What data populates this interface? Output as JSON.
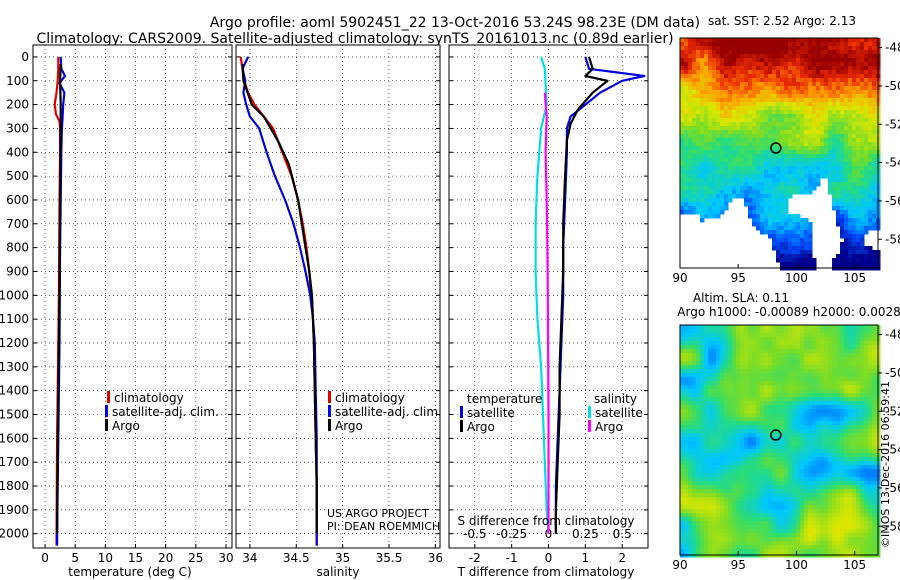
{
  "header": {
    "title_line1": "Argo profile: aoml 5902451_22 13-Oct-2016 53.24S 98.23E (DM data)",
    "title_line2": "Climatology: CARS2009. Satellite-adjusted climatology: synTS_20161013.nc (0.89d earlier)"
  },
  "colors": {
    "climatology": "#e00000",
    "satellite_adj": "#0000e0",
    "argo": "#000000",
    "s_satellite": "#00e0e0",
    "s_argo": "#ff00ff",
    "grid": "#000000"
  },
  "pressure_ticks": [
    "0",
    "100",
    "200",
    "300",
    "400",
    "500",
    "600",
    "700",
    "800",
    "900",
    "1000",
    "1100",
    "1200",
    "1300",
    "1400",
    "1500",
    "1600",
    "1700",
    "1800",
    "1900",
    "2000"
  ],
  "chart_data": [
    {
      "type": "line",
      "id": "temperature",
      "xlabel": "temperature (deg C)",
      "ylabel": "pressure (dbar)",
      "xlim": [
        -2,
        31
      ],
      "ylim": [
        2060,
        -50
      ],
      "xticks": [
        "0",
        "5",
        "10",
        "15",
        "20",
        "25",
        "30"
      ],
      "legend": [
        "climatology",
        "satellite-adj. clim.",
        "Argo"
      ],
      "series": [
        {
          "name": "climatology",
          "color": "#e00000",
          "points": [
            [
              2.2,
              0
            ],
            [
              2.2,
              50
            ],
            [
              2.1,
              100
            ],
            [
              1.9,
              150
            ],
            [
              1.6,
              200
            ],
            [
              1.8,
              240
            ],
            [
              2.4,
              270
            ],
            [
              2.5,
              300
            ],
            [
              2.5,
              400
            ],
            [
              2.4,
              600
            ],
            [
              2.35,
              800
            ],
            [
              2.3,
              1000
            ],
            [
              2.2,
              1200
            ],
            [
              2.1,
              1400
            ],
            [
              2.0,
              1600
            ],
            [
              1.95,
              1800
            ],
            [
              1.9,
              2050
            ]
          ]
        },
        {
          "name": "satellite-adj. clim.",
          "color": "#0000e0",
          "points": [
            [
              2.6,
              0
            ],
            [
              2.7,
              50
            ],
            [
              3.3,
              80
            ],
            [
              2.4,
              110
            ],
            [
              3.2,
              150
            ],
            [
              3.0,
              200
            ],
            [
              2.9,
              260
            ],
            [
              2.8,
              300
            ],
            [
              2.7,
              400
            ],
            [
              2.6,
              600
            ],
            [
              2.5,
              800
            ],
            [
              2.45,
              1000
            ],
            [
              2.4,
              1200
            ],
            [
              2.3,
              1400
            ],
            [
              2.2,
              1600
            ],
            [
              2.1,
              1800
            ],
            [
              2.0,
              2000
            ],
            [
              2.0,
              2050
            ]
          ]
        },
        {
          "name": "Argo",
          "color": "#000000",
          "points": [
            [
              2.6,
              30
            ],
            [
              2.5,
              100
            ],
            [
              2.6,
              200
            ],
            [
              2.6,
              300
            ],
            [
              2.55,
              400
            ],
            [
              2.5,
              600
            ],
            [
              2.45,
              800
            ],
            [
              2.4,
              1000
            ],
            [
              2.3,
              1200
            ],
            [
              2.2,
              1400
            ],
            [
              2.1,
              1600
            ],
            [
              2.05,
              1800
            ],
            [
              2.0,
              2000
            ]
          ]
        }
      ]
    },
    {
      "type": "line",
      "id": "salinity",
      "xlabel": "salinity",
      "xlim": [
        33.85,
        36.05
      ],
      "ylim": [
        2060,
        -50
      ],
      "xticks": [
        "34",
        "34.5",
        "35",
        "35.5",
        "36"
      ],
      "legend": [
        "climatology",
        "satellite-adj. clim.",
        "Argo"
      ],
      "credit": [
        "US ARGO PROJECT",
        "PI: DEAN ROEMMICH"
      ],
      "series": [
        {
          "name": "climatology",
          "color": "#e00000",
          "points": [
            [
              33.9,
              0
            ],
            [
              33.92,
              50
            ],
            [
              33.94,
              100
            ],
            [
              33.98,
              150
            ],
            [
              34.05,
              200
            ],
            [
              34.15,
              250
            ],
            [
              34.25,
              300
            ],
            [
              34.35,
              400
            ],
            [
              34.45,
              500
            ],
            [
              34.52,
              600
            ],
            [
              34.57,
              700
            ],
            [
              34.61,
              800
            ],
            [
              34.64,
              900
            ],
            [
              34.66,
              1000
            ],
            [
              34.68,
              1100
            ],
            [
              34.69,
              1200
            ],
            [
              34.7,
              1400
            ],
            [
              34.71,
              1600
            ],
            [
              34.72,
              1800
            ],
            [
              34.72,
              2050
            ]
          ]
        },
        {
          "name": "satellite-adj. clim.",
          "color": "#0000e0",
          "points": [
            [
              33.98,
              0
            ],
            [
              33.92,
              50
            ],
            [
              33.95,
              100
            ],
            [
              33.93,
              150
            ],
            [
              33.96,
              200
            ],
            [
              34.0,
              250
            ],
            [
              34.1,
              300
            ],
            [
              34.18,
              400
            ],
            [
              34.27,
              500
            ],
            [
              34.38,
              600
            ],
            [
              34.47,
              700
            ],
            [
              34.54,
              800
            ],
            [
              34.6,
              900
            ],
            [
              34.65,
              1000
            ],
            [
              34.68,
              1100
            ],
            [
              34.7,
              1200
            ],
            [
              34.71,
              1400
            ],
            [
              34.72,
              1600
            ],
            [
              34.72,
              1800
            ],
            [
              34.72,
              2050
            ]
          ]
        },
        {
          "name": "Argo",
          "color": "#000000",
          "points": [
            [
              33.92,
              30
            ],
            [
              33.93,
              100
            ],
            [
              34.02,
              200
            ],
            [
              34.15,
              250
            ],
            [
              34.3,
              350
            ],
            [
              34.42,
              450
            ],
            [
              34.52,
              600
            ],
            [
              34.6,
              800
            ],
            [
              34.64,
              900
            ],
            [
              34.67,
              1000
            ],
            [
              34.69,
              1200
            ],
            [
              34.7,
              1400
            ],
            [
              34.71,
              1600
            ],
            [
              34.72,
              1800
            ],
            [
              34.72,
              2000
            ]
          ]
        }
      ]
    },
    {
      "type": "line",
      "id": "difference",
      "xlabel": "T difference from climatology",
      "xlabel_top": "S difference from climatology",
      "xlim": [
        -2.7,
        2.7
      ],
      "ylim": [
        2060,
        -50
      ],
      "xticks": [
        "-2",
        "-1",
        "0",
        "1",
        "2"
      ],
      "s_xticks": [
        "-0.5",
        "-0.25",
        "0",
        "0.25",
        "0.5"
      ],
      "legend_left_title": "temperature",
      "legend_right_title": "salinity",
      "legend_left": [
        "satellite",
        "Argo"
      ],
      "legend_right": [
        "satellite",
        "Argo"
      ],
      "series": [
        {
          "name": "T satellite",
          "color": "#0000e0",
          "points": [
            [
              1.0,
              0
            ],
            [
              1.1,
              50
            ],
            [
              2.6,
              80
            ],
            [
              2.0,
              100
            ],
            [
              1.4,
              150
            ],
            [
              1.0,
              200
            ],
            [
              0.6,
              250
            ],
            [
              0.5,
              300
            ],
            [
              0.5,
              400
            ],
            [
              0.45,
              600
            ],
            [
              0.4,
              800
            ],
            [
              0.4,
              1000
            ],
            [
              0.35,
              1200
            ],
            [
              0.3,
              1400
            ],
            [
              0.25,
              1600
            ],
            [
              0.2,
              1800
            ],
            [
              0.2,
              2000
            ]
          ]
        },
        {
          "name": "T Argo",
          "color": "#000000",
          "points": [
            [
              1.1,
              0
            ],
            [
              1.2,
              50
            ],
            [
              1.0,
              80
            ],
            [
              1.6,
              100
            ],
            [
              1.2,
              150
            ],
            [
              0.8,
              220
            ],
            [
              0.6,
              280
            ],
            [
              0.5,
              350
            ],
            [
              0.45,
              500
            ],
            [
              0.4,
              700
            ],
            [
              0.4,
              900
            ],
            [
              0.35,
              1100
            ],
            [
              0.3,
              1300
            ],
            [
              0.3,
              1500
            ],
            [
              0.25,
              1700
            ],
            [
              0.2,
              1900
            ],
            [
              0.2,
              2000
            ]
          ]
        },
        {
          "name": "S satellite",
          "color": "#00e0e0",
          "points": [
            [
              -0.2,
              0
            ],
            [
              -0.1,
              50
            ],
            [
              -0.05,
              200
            ],
            [
              -0.2,
              300
            ],
            [
              -0.3,
              500
            ],
            [
              -0.35,
              700
            ],
            [
              -0.35,
              900
            ],
            [
              -0.3,
              1100
            ],
            [
              -0.2,
              1300
            ],
            [
              -0.15,
              1500
            ],
            [
              -0.1,
              1700
            ],
            [
              -0.05,
              1900
            ],
            [
              0.0,
              2000
            ]
          ]
        },
        {
          "name": "S Argo",
          "color": "#ff00ff",
          "points": [
            [
              -0.1,
              150
            ],
            [
              -0.05,
              250
            ],
            [
              -0.08,
              400
            ],
            [
              -0.05,
              600
            ],
            [
              -0.03,
              800
            ],
            [
              -0.02,
              1000
            ],
            [
              -0.01,
              1200
            ],
            [
              0.0,
              1500
            ],
            [
              0.0,
              2000
            ]
          ]
        }
      ]
    },
    {
      "type": "heatmap",
      "id": "sst_map",
      "title": "sat. SST: 2.52 Argo: 2.13",
      "xlim": [
        90,
        107
      ],
      "ylim": [
        -59.5,
        -47.5
      ],
      "xticks": [
        "90",
        "95",
        "100",
        "105"
      ],
      "yticks": [
        "-48",
        "-50",
        "-52",
        "-54",
        "-56",
        "-58"
      ],
      "float_position": [
        98.23,
        -53.24
      ]
    },
    {
      "type": "heatmap",
      "id": "sla_map",
      "title": "Altim. SLA: 0.11",
      "subtitle": "Argo h1000: -0.00089 h2000: 0.0028",
      "xlim": [
        90,
        107
      ],
      "ylim": [
        -59.5,
        -47.5
      ],
      "xticks": [
        "90",
        "95",
        "100",
        "105"
      ],
      "yticks": [
        "-48",
        "-50",
        "-52",
        "-54",
        "-56",
        "-58"
      ],
      "float_position": [
        98.23,
        -53.24
      ]
    }
  ],
  "footer": {
    "stamp": "©IMOS 13-Dec-2016 06:59:41"
  }
}
